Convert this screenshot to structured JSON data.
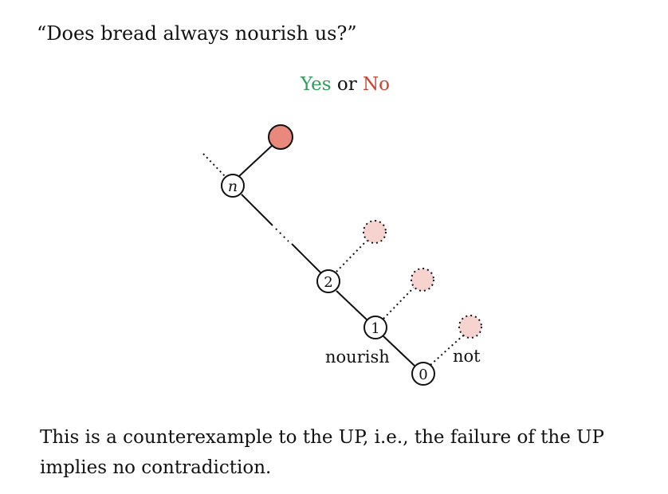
{
  "question": "“Does bread always nourish us?”",
  "answer": {
    "yes": "Yes",
    "or": " or ",
    "no": "No"
  },
  "tree": {
    "nodes": [
      {
        "id": "n",
        "label": "n"
      },
      {
        "id": "2",
        "label": "2"
      },
      {
        "id": "1",
        "label": "1"
      },
      {
        "id": "0",
        "label": "0"
      }
    ],
    "labels": {
      "nourish": "nourish",
      "not": "not"
    }
  },
  "colors": {
    "yes": "#2f9e5a",
    "no": "#c8442f",
    "filled_leaf": "#e8897c",
    "ghost_leaf": "#f6d3cf"
  },
  "caption": "This is a counterexample to the UP, i.e., the failure of the UP implies no contradiction."
}
